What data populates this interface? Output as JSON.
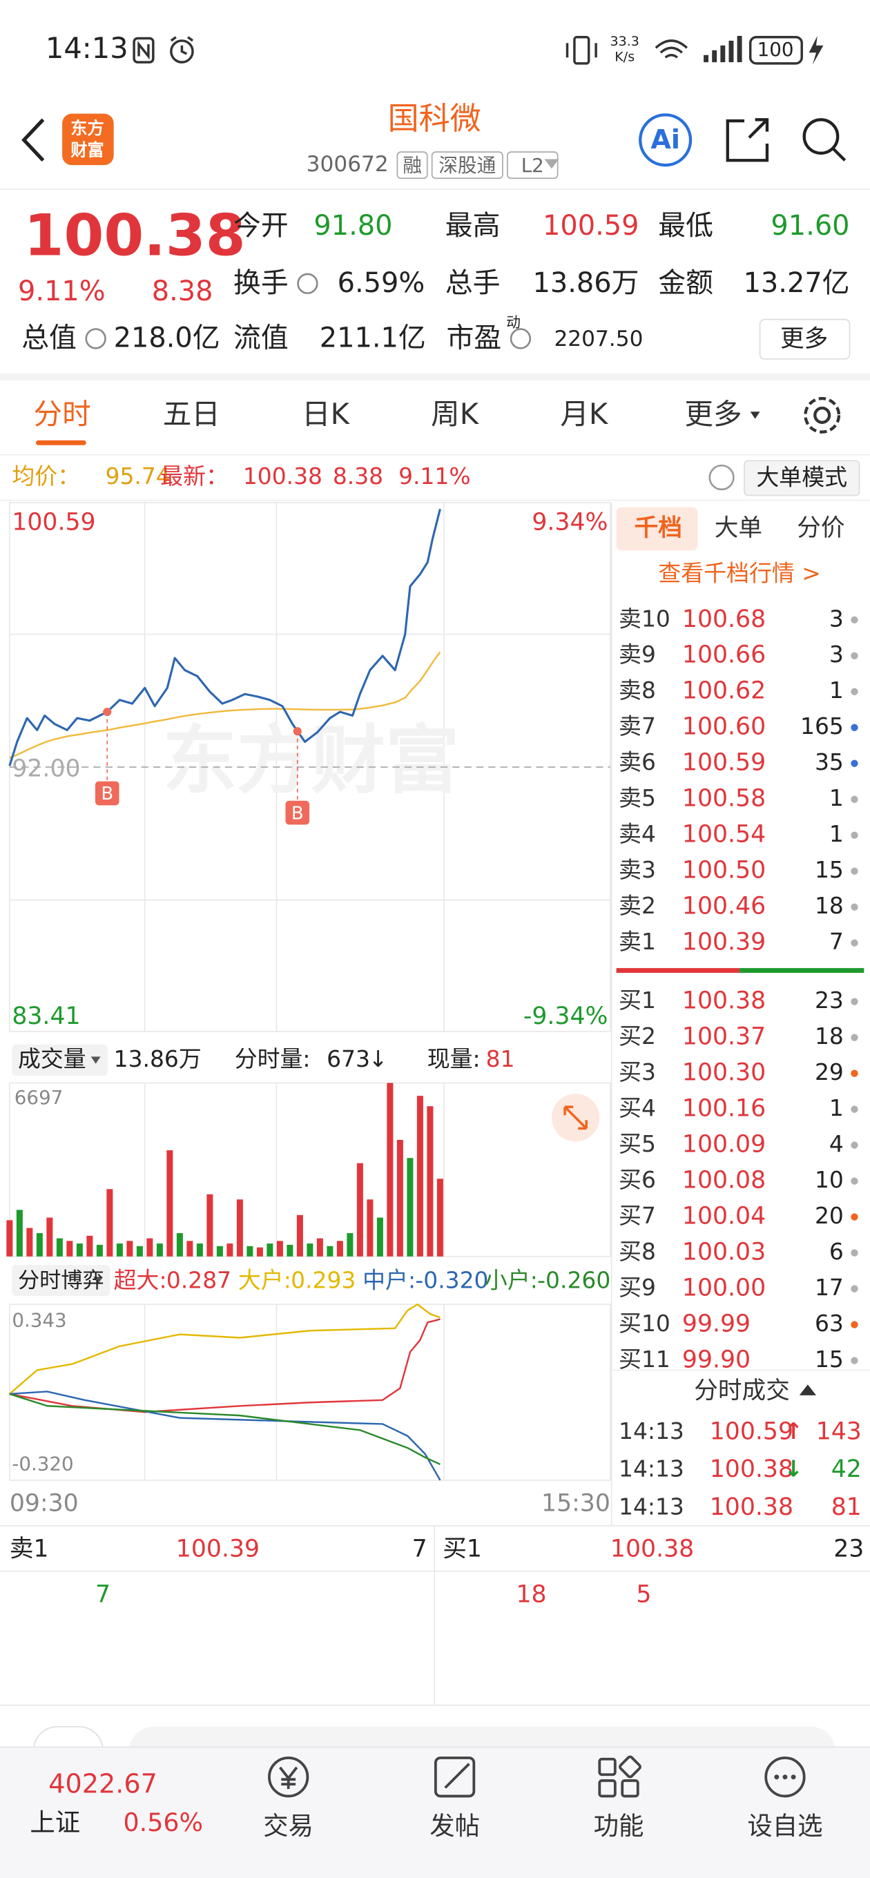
{
  "status_bar": {
    "time": "14:13",
    "net_speed": "33.3",
    "net_unit": "K/s",
    "battery": "100"
  },
  "header": {
    "logo_line1": "东方",
    "logo_line2": "财富",
    "title": "国科微",
    "code": "300672",
    "tags": [
      "融",
      "深股通",
      "L2"
    ],
    "ai": "Ai"
  },
  "quote": {
    "price": "100.38",
    "change_pct": "9.11%",
    "change": "8.38",
    "more": "更多",
    "fields": [
      {
        "label": "今开",
        "value": "91.80",
        "color": "#1e9a2c"
      },
      {
        "label": "最高",
        "value": "100.59",
        "color": "#e0363b"
      },
      {
        "label": "最低",
        "value": "91.60",
        "color": "#1e9a2c"
      },
      {
        "label": "换手",
        "value": "6.59%",
        "color": "#222222"
      },
      {
        "label": "总手",
        "value": "13.86万",
        "color": "#222222"
      },
      {
        "label": "金额",
        "value": "13.27亿",
        "color": "#222222"
      },
      {
        "label": "总值",
        "value": "218.0亿",
        "color": "#222222"
      },
      {
        "label": "流值",
        "value": "211.1亿",
        "color": "#222222"
      },
      {
        "label": "市盈",
        "superscript": "动",
        "value": "2207.50",
        "color": "#222222"
      }
    ]
  },
  "tabs": [
    "分时",
    "五日",
    "日K",
    "周K",
    "月K",
    "更多"
  ],
  "info_bar": {
    "avg_label": "均价：",
    "avg": "95.74",
    "latest_label": "最新：",
    "latest": "100.38",
    "change": "8.38",
    "change_pct": "9.11%",
    "mode_button": "大单模式"
  },
  "watermark": "东方财富",
  "chart_data": [
    {
      "type": "line",
      "x": [
        0,
        3,
        7,
        11,
        14,
        18,
        23,
        27,
        32,
        39,
        44,
        49,
        54,
        58,
        63,
        66,
        70,
        75,
        80,
        85,
        89,
        94,
        99,
        104,
        109,
        113,
        118,
        123,
        128,
        132,
        137,
        140,
        144,
        149,
        154,
        158,
        160,
        164,
        167,
        169,
        172
      ],
      "series": [
        {
          "color": "#2d66b0",
          "values": [
            92.04,
            92.82,
            93.59,
            93.2,
            93.67,
            93.4,
            93.2,
            93.59,
            93.51,
            93.79,
            94.18,
            94.06,
            94.57,
            93.98,
            94.57,
            95.54,
            95.15,
            94.95,
            94.45,
            94.06,
            94.18,
            94.37,
            94.29,
            94.18,
            93.98,
            93.4,
            92.82,
            93.13,
            93.59,
            93.79,
            93.67,
            94.37,
            95.15,
            95.61,
            95.15,
            96.31,
            97.87,
            98.26,
            98.65,
            99.42,
            100.38
          ]
        },
        {
          "color": "#f0b93a",
          "values": [
            92.3,
            92.4,
            92.55,
            92.7,
            92.8,
            92.9,
            93.0,
            93.05,
            93.12,
            93.2,
            93.28,
            93.35,
            93.42,
            93.48,
            93.55,
            93.6,
            93.66,
            93.72,
            93.77,
            93.81,
            93.84,
            93.86,
            93.88,
            93.89,
            93.89,
            93.88,
            93.87,
            93.86,
            93.86,
            93.86,
            93.87,
            93.89,
            93.93,
            94.0,
            94.1,
            94.25,
            94.45,
            94.8,
            95.15,
            95.4,
            95.74
          ]
        }
      ],
      "xlim": [
        0,
        240
      ],
      "ylim": [
        83.41,
        100.59
      ],
      "yticks": [
        83.41,
        {
          "value": 92,
          "label": "92.00"
        },
        100.59
      ],
      "y2lim": [
        -9.34,
        9.34
      ],
      "y2ticks": [
        {
          "value": -9.34,
          "label": "-9.34%"
        },
        {
          "value": 9.34,
          "label": "9.34%"
        }
      ],
      "markers": [
        {
          "label": "B",
          "x": 39,
          "value": 93.79
        },
        {
          "label": "B",
          "x": 115,
          "value": 93.16
        }
      ]
    },
    {
      "type": "bar",
      "title": "成交量",
      "total": "13.86万",
      "minute_label": "分时量:",
      "minute_value": "673",
      "minute_arrow": "↓",
      "current_label": "现量:",
      "current_value": "81",
      "x": [
        0,
        4,
        8,
        12,
        16,
        20,
        24,
        28,
        32,
        36,
        40,
        44,
        48,
        52,
        56,
        60,
        64,
        68,
        72,
        76,
        80,
        84,
        88,
        92,
        96,
        100,
        104,
        108,
        112,
        116,
        120,
        124,
        128,
        132,
        136,
        140,
        144,
        148,
        152,
        156,
        160,
        164,
        168,
        172
      ],
      "series": [
        {
          "color": "#e0363b",
          "values": [
            1400,
            null,
            1100,
            null,
            1500,
            null,
            600,
            null,
            800,
            null,
            2600,
            null,
            600,
            null,
            700,
            null,
            4100,
            null,
            600,
            null,
            2400,
            null,
            500,
            2200,
            null,
            350,
            null,
            600,
            null,
            1600,
            null,
            700,
            null,
            600,
            null,
            3600,
            2200,
            null,
            6697,
            4500,
            null,
            6200,
            5800,
            3000
          ]
        },
        {
          "color": "#1e9a2c",
          "values": [
            null,
            1800,
            null,
            900,
            null,
            700,
            null,
            500,
            null,
            450,
            null,
            500,
            null,
            400,
            null,
            500,
            null,
            900,
            null,
            500,
            null,
            400,
            null,
            null,
            400,
            null,
            500,
            null,
            450,
            null,
            500,
            null,
            400,
            null,
            900,
            null,
            null,
            1500,
            null,
            null,
            3800,
            null,
            null,
            null
          ]
        }
      ],
      "xlim": [
        0,
        240
      ],
      "ylim": [
        0,
        6697
      ],
      "yticks": [
        6697
      ]
    },
    {
      "type": "line",
      "title": "分时博弈",
      "series": [
        {
          "name": "超大:",
          "current": "0.287",
          "color": "#e0363b",
          "x": [
            0,
            25,
            54,
            92,
            120,
            149,
            156,
            160,
            164,
            167,
            172
          ],
          "values": [
            0.005,
            -0.04,
            -0.063,
            -0.04,
            -0.027,
            -0.018,
            0.027,
            0.163,
            0.208,
            0.275,
            0.287
          ]
        },
        {
          "name": "大户:",
          "current": "0.293",
          "color": "#e3b800",
          "x": [
            0,
            11,
            25,
            44,
            68,
            92,
            120,
            154,
            159,
            163,
            168,
            172
          ],
          "values": [
            0.005,
            0.095,
            0.118,
            0.185,
            0.23,
            0.217,
            0.244,
            0.253,
            0.32,
            0.343,
            0.307,
            0.293
          ]
        },
        {
          "name": "中户:",
          "current": "-0.320",
          "color": "#2d66b0",
          "x": [
            0,
            15,
            30,
            68,
            116,
            149,
            159,
            166,
            172
          ],
          "values": [
            0.005,
            0.014,
            -0.018,
            -0.085,
            -0.099,
            -0.108,
            -0.153,
            -0.221,
            -0.32
          ]
        },
        {
          "name": "小户:",
          "current": "-0.260",
          "color": "#2a8a2a",
          "x": [
            0,
            15,
            44,
            92,
            140,
            159,
            166,
            172
          ],
          "values": [
            0.005,
            -0.04,
            -0.054,
            -0.076,
            -0.131,
            -0.198,
            -0.234,
            -0.26
          ]
        }
      ],
      "xlim": [
        0,
        240
      ],
      "xticks": [
        {
          "value": 0,
          "label": "09:30"
        },
        {
          "value": 240,
          "label": "15:30"
        }
      ],
      "ylim": [
        -0.32,
        0.343
      ],
      "yticks": [
        {
          "value": -0.32,
          "label": "-0.320"
        },
        0.343
      ]
    }
  ],
  "order_book": {
    "tabs": [
      "千档",
      "大单",
      "分价"
    ],
    "link": "查看千档行情 >",
    "asks": [
      {
        "label": "卖10",
        "price": "100.68",
        "volume": "3",
        "dot": "#b0b0b0"
      },
      {
        "label": "卖9",
        "price": "100.66",
        "volume": "3",
        "dot": "#b0b0b0"
      },
      {
        "label": "卖8",
        "price": "100.62",
        "volume": "1",
        "dot": "#b0b0b0"
      },
      {
        "label": "卖7",
        "price": "100.60",
        "volume": "165",
        "dot": "#3a6fd8"
      },
      {
        "label": "卖6",
        "price": "100.59",
        "volume": "35",
        "dot": "#3a6fd8"
      },
      {
        "label": "卖5",
        "price": "100.58",
        "volume": "1",
        "dot": "#b0b0b0"
      },
      {
        "label": "卖4",
        "price": "100.54",
        "volume": "1",
        "dot": "#b0b0b0"
      },
      {
        "label": "卖3",
        "price": "100.50",
        "volume": "15",
        "dot": "#b0b0b0"
      },
      {
        "label": "卖2",
        "price": "100.46",
        "volume": "18",
        "dot": "#b0b0b0"
      },
      {
        "label": "卖1",
        "price": "100.39",
        "volume": "7",
        "dot": "#b0b0b0"
      }
    ],
    "bids": [
      {
        "label": "买1",
        "price": "100.38",
        "volume": "23",
        "dot": "#b0b0b0"
      },
      {
        "label": "买2",
        "price": "100.37",
        "volume": "18",
        "dot": "#b0b0b0"
      },
      {
        "label": "买3",
        "price": "100.30",
        "volume": "29",
        "dot": "#f0641e"
      },
      {
        "label": "买4",
        "price": "100.16",
        "volume": "1",
        "dot": "#b0b0b0"
      },
      {
        "label": "买5",
        "price": "100.09",
        "volume": "4",
        "dot": "#b0b0b0"
      },
      {
        "label": "买6",
        "price": "100.08",
        "volume": "10",
        "dot": "#b0b0b0"
      },
      {
        "label": "买7",
        "price": "100.04",
        "volume": "20",
        "dot": "#f0641e"
      },
      {
        "label": "买8",
        "price": "100.03",
        "volume": "6",
        "dot": "#b0b0b0"
      },
      {
        "label": "买9",
        "price": "100.00",
        "volume": "17",
        "dot": "#b0b0b0"
      },
      {
        "label": "买10",
        "price": "99.99",
        "volume": "63",
        "dot": "#f0641e"
      },
      {
        "label": "买11",
        "price": "99.90",
        "volume": "15",
        "dot": "#b0b0b0"
      }
    ],
    "trades_title": "分时成交",
    "trades": [
      {
        "time": "14:13",
        "price": "100.59",
        "arrow": "↑",
        "arrow_color": "#e0363b",
        "volume": "143",
        "color": "#e0363b"
      },
      {
        "time": "14:13",
        "price": "100.38",
        "arrow": "↓",
        "arrow_color": "#1e9a2c",
        "volume": "42",
        "color": "#1e9a2c"
      },
      {
        "time": "14:13",
        "price": "100.38",
        "volume": "81",
        "color": "#e0363b"
      }
    ]
  },
  "bottom_quote": {
    "ask_label": "卖1",
    "ask_price": "100.39",
    "ask_volume": "7",
    "bid_label": "买1",
    "bid_price": "100.38",
    "bid_volume": "23",
    "row2": [
      "7",
      "18",
      "5"
    ]
  },
  "nav": {
    "index_value": "4022.67",
    "index_name": "上证",
    "index_change": "0.56%",
    "items": [
      "交易",
      "发帖",
      "功能",
      "设自选"
    ]
  }
}
